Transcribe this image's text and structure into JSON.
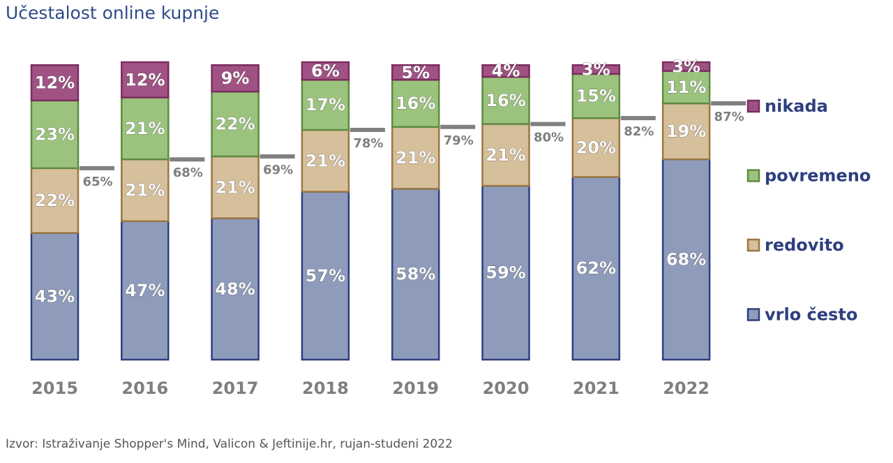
{
  "chart_data": {
    "type": "stacked_bar",
    "title": "Učestalost online kupnje",
    "source": "Izvor: Istraživanje Shopper's Mind, Valicon & Jeftinije.hr, rujan-studeni 2022",
    "categories": [
      "2015",
      "2016",
      "2017",
      "2018",
      "2019",
      "2020",
      "2021",
      "2022"
    ],
    "ylim": [
      0,
      101
    ],
    "series": [
      {
        "name": "vrlo često",
        "color": "#8e9bbb",
        "border": "#2e3f7f",
        "values": [
          43,
          47,
          48,
          57,
          58,
          59,
          62,
          68
        ],
        "value_labels": [
          "43%",
          "47%",
          "48%",
          "57%",
          "58%",
          "59%",
          "62%",
          "68%"
        ]
      },
      {
        "name": "redovito",
        "color": "#d6bf9b",
        "border": "#9a7643",
        "values": [
          22,
          21,
          21,
          21,
          21,
          21,
          20,
          19
        ],
        "value_labels": [
          "22%",
          "21%",
          "21%",
          "21%",
          "21%",
          "21%",
          "20%",
          "19%"
        ]
      },
      {
        "name": "povremeno",
        "color": "#9bc37e",
        "border": "#5e8a3f",
        "values": [
          23,
          21,
          22,
          17,
          16,
          16,
          15,
          11
        ],
        "value_labels": [
          "23%",
          "21%",
          "22%",
          "17%",
          "16%",
          "16%",
          "15%",
          "11%"
        ]
      },
      {
        "name": "nikada",
        "color": "#a05284",
        "border": "#7b2d5f",
        "values": [
          12,
          12,
          9,
          6,
          5,
          4,
          3,
          3
        ],
        "value_labels": [
          "12%",
          "12%",
          "9%",
          "6%",
          "5%",
          "4%",
          "3%",
          "3%"
        ]
      }
    ],
    "totals": {
      "color": "#808080",
      "values": [
        65,
        68,
        69,
        78,
        79,
        80,
        82,
        87
      ],
      "value_labels": [
        "65%",
        "68%",
        "69%",
        "78%",
        "79%",
        "80%",
        "82%",
        "87%"
      ]
    }
  }
}
